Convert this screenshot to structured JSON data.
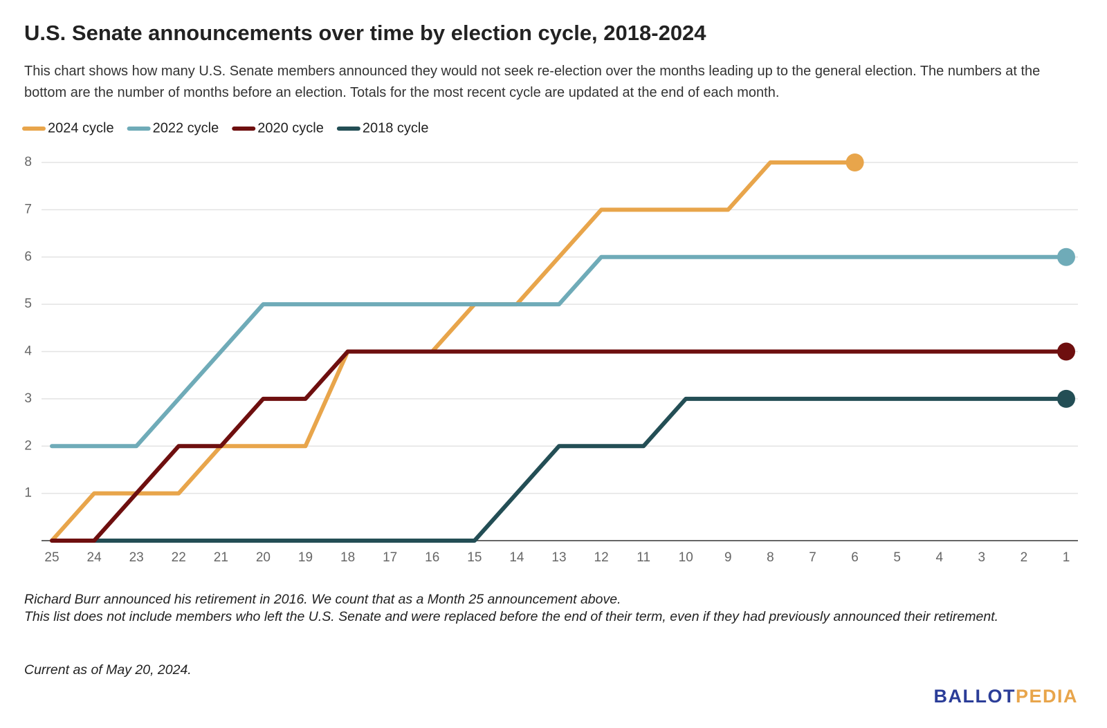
{
  "chart_data": {
    "type": "line",
    "title": "U.S. Senate announcements over time by election cycle, 2018-2024",
    "subtitle": "This chart shows how many U.S. Senate members announced they would not seek re-election over the months leading up to the general election. The numbers at the bottom are the number of months before an election. Totals for the most recent cycle are updated at the end of each month.",
    "categories": [
      "25",
      "24",
      "23",
      "22",
      "21",
      "20",
      "19",
      "18",
      "17",
      "16",
      "15",
      "14",
      "13",
      "12",
      "11",
      "10",
      "9",
      "8",
      "7",
      "6",
      "5",
      "4",
      "3",
      "2",
      "1"
    ],
    "series": [
      {
        "name": "2024 cycle",
        "color": "#e8a54b",
        "values": [
          0,
          1,
          1,
          1,
          2,
          2,
          2,
          4,
          4,
          4,
          5,
          5,
          6,
          7,
          7,
          7,
          7,
          8,
          8,
          8,
          null,
          null,
          null,
          null,
          null
        ]
      },
      {
        "name": "2022 cycle",
        "color": "#6fabb8",
        "values": [
          2,
          2,
          2,
          3,
          4,
          5,
          5,
          5,
          5,
          5,
          5,
          5,
          5,
          6,
          6,
          6,
          6,
          6,
          6,
          6,
          6,
          6,
          6,
          6,
          6
        ]
      },
      {
        "name": "2020 cycle",
        "color": "#6e0f0f",
        "values": [
          0,
          0,
          1,
          2,
          2,
          3,
          3,
          4,
          4,
          4,
          4,
          4,
          4,
          4,
          4,
          4,
          4,
          4,
          4,
          4,
          4,
          4,
          4,
          4,
          4
        ]
      },
      {
        "name": "2018 cycle",
        "color": "#234e55",
        "values": [
          0,
          0,
          0,
          0,
          0,
          0,
          0,
          0,
          0,
          0,
          0,
          1,
          2,
          2,
          2,
          3,
          3,
          3,
          3,
          3,
          3,
          3,
          3,
          3,
          3
        ]
      }
    ],
    "ylim": [
      0,
      8
    ],
    "yticks": [
      1,
      2,
      3,
      4,
      5,
      6,
      7,
      8
    ],
    "grid": true,
    "legend": "top-left",
    "notes": [
      "Richard Burr announced his retirement in 2016. We count that as a Month 25 announcement above.",
      "This list does not include members who left the U.S. Senate and were replaced before the end of their term, even if they had previously announced their retirement.",
      "Current as of May 20, 2024."
    ],
    "logo": [
      "BALLOT",
      "PEDIA"
    ]
  }
}
